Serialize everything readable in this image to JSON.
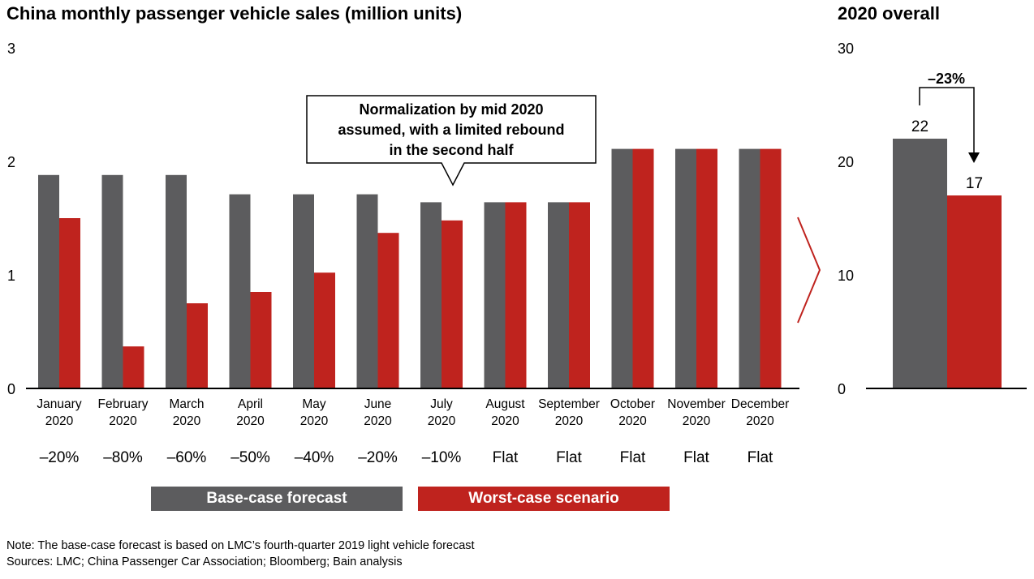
{
  "title": "China monthly passenger vehicle sales (million units)",
  "side_title": "2020 overall",
  "colors": {
    "base": "#5c5c5e",
    "worst": "#bf231e"
  },
  "callout": {
    "lines": [
      "Normalization by mid 2020",
      "assumed, with a limited rebound",
      "in the second half"
    ]
  },
  "legend": {
    "base_label": "Base-case forecast",
    "worst_label": "Worst-case scenario"
  },
  "note": "Note: The base-case forecast is based on LMC’s fourth-quarter 2019 light vehicle forecast",
  "sources": "Sources: LMC; China Passenger Car Association; Bloomberg; Bain analysis",
  "chart_data": [
    {
      "type": "bar",
      "title": "China monthly passenger vehicle sales (million units)",
      "ylim": [
        0,
        3
      ],
      "yticks": [
        "0",
        "1",
        "2",
        "3"
      ],
      "categories": [
        [
          "January",
          "2020"
        ],
        [
          "February",
          "2020"
        ],
        [
          "March",
          "2020"
        ],
        [
          "April",
          "2020"
        ],
        [
          "May",
          "2020"
        ],
        [
          "June",
          "2020"
        ],
        [
          "July",
          "2020"
        ],
        [
          "August",
          "2020"
        ],
        [
          "September",
          "2020"
        ],
        [
          "October",
          "2020"
        ],
        [
          "November",
          "2020"
        ],
        [
          "December",
          "2020"
        ]
      ],
      "series": [
        {
          "name": "Base-case forecast",
          "values": [
            1.88,
            1.88,
            1.88,
            1.71,
            1.71,
            1.71,
            1.64,
            1.64,
            1.64,
            2.11,
            2.11,
            2.11
          ]
        },
        {
          "name": "Worst-case scenario",
          "values": [
            1.5,
            0.37,
            0.75,
            0.85,
            1.02,
            1.37,
            1.48,
            1.64,
            1.64,
            2.11,
            2.11,
            2.11
          ]
        }
      ],
      "changes": [
        "–20%",
        "–80%",
        "–60%",
        "–50%",
        "–40%",
        "–20%",
        "–10%",
        "Flat",
        "Flat",
        "Flat",
        "Flat",
        "Flat"
      ],
      "grid": false,
      "legend_position": "bottom"
    },
    {
      "type": "bar",
      "title": "2020 overall",
      "ylim": [
        0,
        30
      ],
      "yticks": [
        "0",
        "10",
        "20",
        "30"
      ],
      "series": [
        {
          "name": "Base-case forecast",
          "values": [
            22
          ],
          "label": "22"
        },
        {
          "name": "Worst-case scenario",
          "values": [
            17
          ],
          "label": "17"
        }
      ],
      "change_label": "–23%"
    }
  ]
}
